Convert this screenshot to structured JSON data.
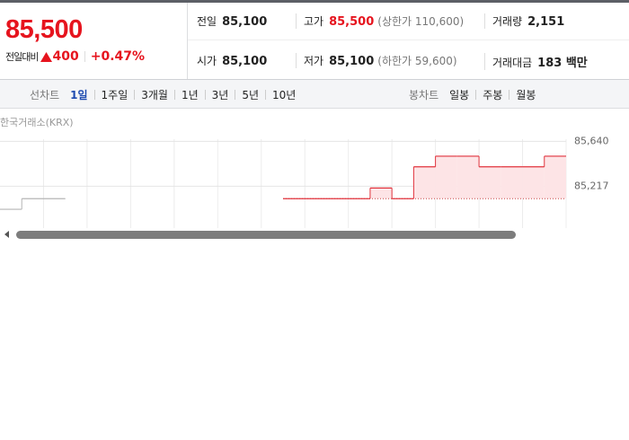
{
  "price": {
    "current": "85,500",
    "change_label": "전일대비",
    "change": "400",
    "change_rate": "+0.47%"
  },
  "stats": [
    [
      {
        "label": "전일",
        "value": "85,100"
      },
      {
        "label": "고가",
        "value": "85,500",
        "note": "(상한가 110,600)"
      },
      {
        "label": "거래량",
        "value": "2,151"
      }
    ],
    [
      {
        "label": "시가",
        "value": "85,100"
      },
      {
        "label": "저가",
        "value": "85,100",
        "note": "(하한가 59,600)"
      },
      {
        "label": "거래대금",
        "value": "183 백만"
      }
    ]
  ],
  "tabs": {
    "line_label": "선차트",
    "line": [
      "1일",
      "1주일",
      "3개월",
      "1년",
      "3년",
      "5년",
      "10년"
    ],
    "candle_label": "봉차트",
    "candle": [
      "일봉",
      "주봉",
      "월봉"
    ]
  },
  "chart_data": {
    "type": "line",
    "source": "한국거래소(KRX)",
    "base": 85100,
    "categories": [
      null,
      null,
      null,
      null,
      null,
      null,
      null,
      null,
      null,
      null,
      null,
      null,
      null,
      null,
      null,
      null,
      null,
      null,
      null,
      null,
      null,
      null,
      null,
      null,
      null,
      null
    ],
    "series": [
      {
        "color": "#e0323c",
        "fill": "#fde4e6",
        "values": [
          null,
          null,
          null,
          null,
          null,
          null,
          null,
          null,
          null,
          null,
          null,
          null,
          null,
          85100,
          85100,
          85100,
          85100,
          85200,
          85100,
          85400,
          85500,
          85500,
          85400,
          85400,
          85400,
          85500
        ]
      },
      {
        "color": "#b4b4b4",
        "values": [
          85000,
          85100,
          85100,
          null,
          null,
          null,
          null,
          null,
          null,
          null,
          null,
          null,
          null,
          null,
          null,
          null,
          null,
          null,
          null,
          null,
          null,
          null,
          null,
          null,
          null,
          null
        ]
      }
    ],
    "ylim": [
      84800,
      85660
    ],
    "yticks": [
      {
        "value": 85640,
        "label": "85,640"
      },
      {
        "value": 85217,
        "label": "85,217"
      }
    ],
    "grid": true
  }
}
